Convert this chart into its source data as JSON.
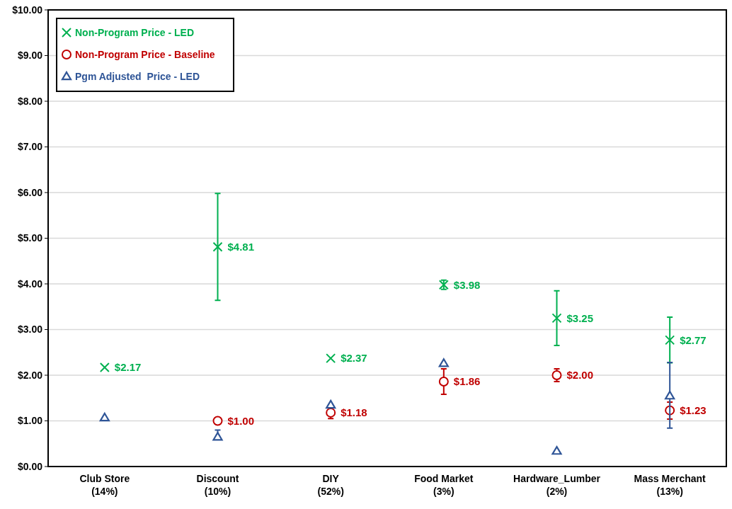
{
  "chart_data": {
    "type": "scatter",
    "categories": [
      "Club Store\n(14%)",
      "Discount\n(10%)",
      "DIY\n(52%)",
      "Food Market\n(3%)",
      "Hardware_Lumber\n(2%)",
      "Mass Merchant\n(13%)"
    ],
    "ylim": [
      0,
      10
    ],
    "yticks": [
      {
        "value": 0,
        "label": "$0.00"
      },
      {
        "value": 1,
        "label": "$1.00"
      },
      {
        "value": 2,
        "label": "$2.00"
      },
      {
        "value": 3,
        "label": "$3.00"
      },
      {
        "value": 4,
        "label": "$4.00"
      },
      {
        "value": 5,
        "label": "$5.00"
      },
      {
        "value": 6,
        "label": "$6.00"
      },
      {
        "value": 7,
        "label": "$7.00"
      },
      {
        "value": 8,
        "label": "$8.00"
      },
      {
        "value": 9,
        "label": "$9.00"
      },
      {
        "value": 10,
        "label": "$10.00"
      }
    ],
    "grid": "y",
    "legend": "top left",
    "series": [
      {
        "name": "Non-Program Price - LED",
        "color": "#00b050",
        "marker": "cross",
        "values": [
          2.17,
          4.81,
          2.37,
          3.98,
          3.25,
          2.77
        ],
        "errors": [
          null,
          [
            3.64,
            5.98
          ],
          null,
          [
            3.88,
            4.08
          ],
          [
            2.65,
            3.85
          ],
          [
            2.27,
            3.27
          ]
        ],
        "value_labels": [
          "$2.17",
          "$4.81",
          "$2.37",
          "$3.98",
          "$3.25",
          "$2.77"
        ]
      },
      {
        "name": "Non-Program Price - Baseline",
        "color": "#c00000",
        "marker": "circle",
        "values": [
          null,
          1.0,
          1.18,
          1.86,
          2.0,
          1.23
        ],
        "errors": [
          null,
          null,
          [
            1.05,
            1.29
          ],
          [
            1.58,
            2.14
          ],
          [
            1.86,
            2.14
          ],
          [
            1.04,
            1.41
          ]
        ],
        "value_labels": [
          null,
          "$1.00",
          "$1.18",
          "$1.86",
          "$2.00",
          "$1.23"
        ]
      },
      {
        "name": "Pgm Adjusted  Price - LED",
        "color": "#2f5597",
        "marker": "triangle",
        "values": [
          1.07,
          0.65,
          1.35,
          2.26,
          0.34,
          1.55
        ],
        "errors": [
          null,
          [
            0.6,
            0.8
          ],
          null,
          null,
          null,
          [
            0.84,
            2.28
          ]
        ]
      }
    ]
  }
}
